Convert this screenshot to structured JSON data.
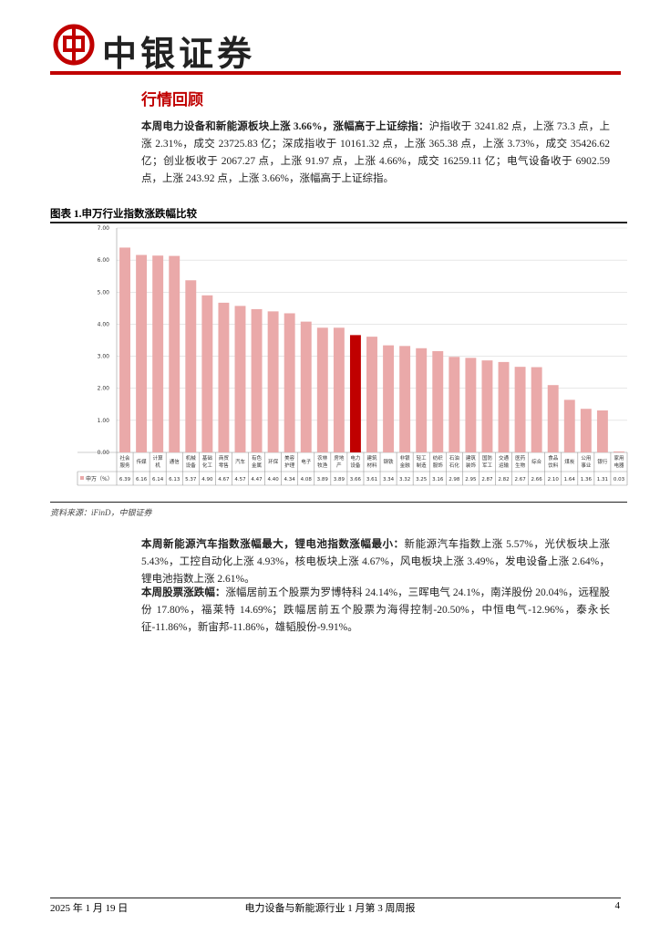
{
  "header": {
    "logo_text": "中银证券"
  },
  "section_title": "行情回顾",
  "paragraphs": [
    {
      "lead": "本周电力设备和新能源板块上涨 3.66%，涨幅高于上证综指：",
      "text": "沪指收于 3241.82 点，上涨 73.3 点，上涨 2.31%，成交 23725.83 亿；深成指收于 10161.32 点，上涨 365.38 点，上涨 3.73%，成交 35426.62 亿；创业板收于 2067.27 点，上涨 91.97 点，上涨 4.66%，成交 16259.11 亿；电气设备收于 6902.59 点，上涨 243.92 点，上涨 3.66%，涨幅高于上证综指。"
    },
    {
      "lead": "本周新能源汽车指数涨幅最大，锂电池指数涨幅最小：",
      "text": "新能源汽车指数上涨 5.57%，光伏板块上涨 5.43%，工控自动化上涨 4.93%，核电板块上涨 4.67%，风电板块上涨 3.49%，发电设备上涨 2.64%，锂电池指数上涨 2.61%。"
    },
    {
      "lead": "本周股票涨跌幅：",
      "text": "涨幅居前五个股票为罗博特科 24.14%，三晖电气 24.1%，南洋股份 20.04%，远程股份 17.80%，福莱特 14.69%；跌幅居前五个股票为海得控制-20.50%，中恒电气-12.96%，泰永长征-11.86%，新宙邦-11.86%，雄韬股份-9.91%。"
    }
  ],
  "chart_data": {
    "type": "bar",
    "title": "图表 1.申万行业指数涨跌幅比较",
    "categories": [
      "社会服务",
      "传媒",
      "计算机",
      "通信",
      "机械设备",
      "基础化工",
      "商贸零售",
      "汽车",
      "有色金属",
      "环保",
      "美容护理",
      "电子",
      "农林牧渔",
      "房地产",
      "电力设备",
      "建筑材料",
      "钢铁",
      "非银金融",
      "轻工制造",
      "纺织服饰",
      "石油石化",
      "建筑装饰",
      "国防军工",
      "交通运输",
      "医药生物",
      "综合",
      "食品饮料",
      "煤炭",
      "公用事业",
      "银行",
      "家用电器"
    ],
    "series": [
      {
        "name": "申万（%）",
        "color": "#eaa9a9",
        "colors": [
          "#eaa9a9",
          "#eaa9a9",
          "#eaa9a9",
          "#eaa9a9",
          "#eaa9a9",
          "#eaa9a9",
          "#eaa9a9",
          "#eaa9a9",
          "#eaa9a9",
          "#eaa9a9",
          "#eaa9a9",
          "#eaa9a9",
          "#eaa9a9",
          "#eaa9a9",
          "#c00000",
          "#eaa9a9",
          "#eaa9a9",
          "#eaa9a9",
          "#eaa9a9",
          "#eaa9a9",
          "#eaa9a9",
          "#eaa9a9",
          "#eaa9a9",
          "#eaa9a9",
          "#eaa9a9",
          "#eaa9a9",
          "#eaa9a9",
          "#eaa9a9",
          "#eaa9a9",
          "#eaa9a9",
          "#eaa9a9"
        ],
        "values": [
          6.39,
          6.16,
          6.14,
          6.13,
          5.37,
          4.9,
          4.67,
          4.57,
          4.47,
          4.4,
          4.34,
          4.08,
          3.89,
          3.89,
          3.66,
          3.61,
          3.34,
          3.32,
          3.25,
          3.16,
          2.98,
          2.95,
          2.87,
          2.82,
          2.67,
          2.66,
          2.1,
          1.64,
          1.36,
          1.31,
          0.03
        ],
        "value_labels": [
          "6.39",
          "6.16",
          "6.14",
          "6.13",
          "5.37",
          "4.90",
          "4.67",
          "4.57",
          "4.47",
          "4.40",
          "4.34",
          "4.08",
          "3.89",
          "3.89",
          "3.66",
          "3.61",
          "3.34",
          "3.32",
          "3.25",
          "3.16",
          "2.98",
          "2.95",
          "2.87",
          "2.82",
          "2.67",
          "2.66",
          "2.10",
          "1.64",
          "1.36",
          "1.31",
          "0.03"
        ]
      }
    ],
    "ylim": [
      0,
      7
    ],
    "yticks": [
      {
        "value": 0,
        "label": "0.00"
      },
      {
        "value": 1,
        "label": "1.00"
      },
      {
        "value": 2,
        "label": "2.00"
      },
      {
        "value": 3,
        "label": "3.00"
      },
      {
        "value": 4,
        "label": "4.00"
      },
      {
        "value": 5,
        "label": "5.00"
      },
      {
        "value": 6,
        "label": "6.00"
      },
      {
        "value": 7,
        "label": "7.00"
      }
    ],
    "grid": true,
    "source": "资料来源：iFinD，中银证券"
  },
  "footer": {
    "date": "2025 年 1 月 19 日",
    "report": "电力设备与新能源行业 1 月第 3 周周报",
    "page": "4"
  }
}
